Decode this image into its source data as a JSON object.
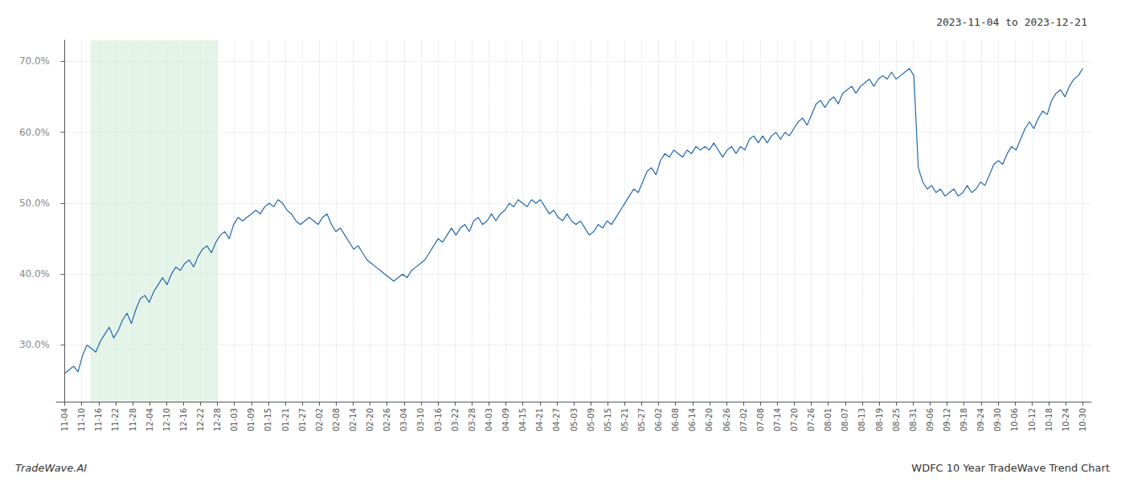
{
  "chart_data": {
    "type": "line",
    "title": "WDFC 10 Year TradeWave Trend Chart",
    "subtitle": "2023-11-04 to 2023-12-21",
    "annotations": [
      "TradeWave.AI"
    ],
    "color": "#2266aa",
    "grid": true,
    "highlight": {
      "start": 1.5,
      "end": 9.0,
      "color": "#d4edda"
    },
    "xlim": [
      -0.5,
      60.5
    ],
    "xticks": [
      {
        "value": 0,
        "label": "11-04"
      },
      {
        "value": 1,
        "label": "11-10"
      },
      {
        "value": 2,
        "label": "11-16"
      },
      {
        "value": 3,
        "label": "11-22"
      },
      {
        "value": 4,
        "label": "11-28"
      },
      {
        "value": 5,
        "label": "12-04"
      },
      {
        "value": 6,
        "label": "12-10"
      },
      {
        "value": 7,
        "label": "12-16"
      },
      {
        "value": 8,
        "label": "12-22"
      },
      {
        "value": 9,
        "label": "12-28"
      },
      {
        "value": 10,
        "label": "01-03"
      },
      {
        "value": 11,
        "label": "01-09"
      },
      {
        "value": 12,
        "label": "01-15"
      },
      {
        "value": 13,
        "label": "01-21"
      },
      {
        "value": 14,
        "label": "01-27"
      },
      {
        "value": 15,
        "label": "02-02"
      },
      {
        "value": 16,
        "label": "02-08"
      },
      {
        "value": 17,
        "label": "02-14"
      },
      {
        "value": 18,
        "label": "02-20"
      },
      {
        "value": 19,
        "label": "02-26"
      },
      {
        "value": 20,
        "label": "03-04"
      },
      {
        "value": 21,
        "label": "03-10"
      },
      {
        "value": 22,
        "label": "03-16"
      },
      {
        "value": 23,
        "label": "03-22"
      },
      {
        "value": 24,
        "label": "03-28"
      },
      {
        "value": 25,
        "label": "04-03"
      },
      {
        "value": 26,
        "label": "04-09"
      },
      {
        "value": 27,
        "label": "04-15"
      },
      {
        "value": 28,
        "label": "04-21"
      },
      {
        "value": 29,
        "label": "04-27"
      },
      {
        "value": 30,
        "label": "05-03"
      },
      {
        "value": 31,
        "label": "05-09"
      },
      {
        "value": 32,
        "label": "05-15"
      },
      {
        "value": 33,
        "label": "05-21"
      },
      {
        "value": 34,
        "label": "05-27"
      },
      {
        "value": 35,
        "label": "06-02"
      },
      {
        "value": 36,
        "label": "06-08"
      },
      {
        "value": 37,
        "label": "06-14"
      },
      {
        "value": 38,
        "label": "06-20"
      },
      {
        "value": 39,
        "label": "06-26"
      },
      {
        "value": 40,
        "label": "07-02"
      },
      {
        "value": 41,
        "label": "07-08"
      },
      {
        "value": 42,
        "label": "07-14"
      },
      {
        "value": 43,
        "label": "07-20"
      },
      {
        "value": 44,
        "label": "07-26"
      },
      {
        "value": 45,
        "label": "08-01"
      },
      {
        "value": 46,
        "label": "08-07"
      },
      {
        "value": 47,
        "label": "08-13"
      },
      {
        "value": 48,
        "label": "08-19"
      },
      {
        "value": 49,
        "label": "08-25"
      },
      {
        "value": 50,
        "label": "08-31"
      },
      {
        "value": 51,
        "label": "09-06"
      },
      {
        "value": 52,
        "label": "09-12"
      },
      {
        "value": 53,
        "label": "09-18"
      },
      {
        "value": 54,
        "label": "09-24"
      },
      {
        "value": 55,
        "label": "09-30"
      },
      {
        "value": 56,
        "label": "10-06"
      },
      {
        "value": 57,
        "label": "10-12"
      },
      {
        "value": 58,
        "label": "10-18"
      },
      {
        "value": 59,
        "label": "10-24"
      },
      {
        "value": 60,
        "label": "10-30"
      }
    ],
    "ylim": [
      22,
      73
    ],
    "yticks": [
      {
        "value": 30,
        "label": "30.0%"
      },
      {
        "value": 40,
        "label": "40.0%"
      },
      {
        "value": 50,
        "label": "50.0%"
      },
      {
        "value": 60,
        "label": "60.0%"
      },
      {
        "value": 70,
        "label": "70.0%"
      }
    ],
    "x": [
      0,
      0.262,
      0.524,
      0.786,
      1.048,
      1.31,
      1.5721,
      1.8341,
      2.0961,
      2.3581,
      2.6201,
      2.8821,
      3.1441,
      3.4061,
      3.6681,
      3.9301,
      4.1921,
      4.4541,
      4.7162,
      4.9782,
      5.2402,
      5.5022,
      5.7642,
      6.0262,
      6.2882,
      6.5502,
      6.8122,
      7.0742,
      7.3362,
      7.5983,
      7.8603,
      8.1223,
      8.3843,
      8.6463,
      8.9083,
      9.1703,
      9.4323,
      9.6943,
      9.9563,
      10.2183,
      10.4803,
      10.7424,
      11.0044,
      11.2664,
      11.5284,
      11.7904,
      12.0524,
      12.3144,
      12.5764,
      12.8384,
      13.1004,
      13.3624,
      13.6245,
      13.8865,
      14.1485,
      14.4105,
      14.6725,
      14.9345,
      15.1965,
      15.4585,
      15.7205,
      15.9825,
      16.2445,
      16.5066,
      16.7686,
      17.0306,
      17.2926,
      17.5546,
      17.8166,
      18.0786,
      18.3406,
      18.6026,
      18.8646,
      19.1266,
      19.3886,
      19.6507,
      19.9127,
      20.1747,
      20.4367,
      20.6987,
      20.9607,
      21.2227,
      21.4847,
      21.7467,
      22.0087,
      22.2707,
      22.5328,
      22.7948,
      23.0568,
      23.3188,
      23.5808,
      23.8428,
      24.1048,
      24.3668,
      24.6288,
      24.8908,
      25.1528,
      25.4148,
      25.6769,
      25.9389,
      26.2009,
      26.4629,
      26.7249,
      26.9869,
      27.2489,
      27.5109,
      27.7729,
      28.0349,
      28.2969,
      28.559,
      28.821,
      29.083,
      29.345,
      29.607,
      29.869,
      30.131,
      30.393,
      30.655,
      30.917,
      31.179,
      31.441,
      31.7031,
      31.9651,
      32.2271,
      32.4891,
      32.7511,
      33.0131,
      33.2751,
      33.5371,
      33.7991,
      34.0611,
      34.3231,
      34.5852,
      34.8472,
      35.1092,
      35.3712,
      35.6332,
      35.8952,
      36.1572,
      36.4192,
      36.6812,
      36.9432,
      37.2052,
      37.4672,
      37.7293,
      37.9913,
      38.2533,
      38.5153,
      38.7773,
      39.0393,
      39.3013,
      39.5633,
      39.8253,
      40.0873,
      40.3493,
      40.6114,
      40.8734,
      41.1354,
      41.3974,
      41.6594,
      41.9214,
      42.1834,
      42.4454,
      42.7074,
      42.9694,
      43.2314,
      43.4934,
      43.7555,
      44.0175,
      44.2795,
      44.5415,
      44.8035,
      45.0655,
      45.3275,
      45.5895,
      45.8515,
      46.1135,
      46.3755,
      46.6376,
      46.8996,
      47.1616,
      47.4236,
      47.6856,
      47.9476,
      48.2096,
      48.4716,
      48.7336,
      48.9956,
      49.2576,
      49.5197,
      49.7817,
      50.0437,
      50.3057,
      50.5677,
      50.8297,
      51.0917,
      51.3537,
      51.6157,
      51.8777,
      52.1397,
      52.4017,
      52.6638,
      52.9258,
      53.1878,
      53.4498,
      53.7118,
      53.9738,
      54.2358,
      54.4978,
      54.7598,
      55.0218,
      55.2838,
      55.5459,
      55.8079,
      56.0699,
      56.3319,
      56.5939,
      56.8559,
      57.1179,
      57.3799,
      57.6419,
      57.9039,
      58.1659,
      58.4279,
      58.69,
      58.952,
      59.214,
      59.476,
      59.738,
      60
    ],
    "values": [
      26.0,
      26.5,
      27.0,
      26.2,
      28.5,
      30.0,
      29.5,
      29.0,
      30.5,
      31.5,
      32.5,
      31.0,
      32.0,
      33.5,
      34.5,
      33.0,
      35.0,
      36.5,
      37.0,
      36.0,
      37.5,
      38.5,
      39.5,
      38.5,
      40.0,
      41.0,
      40.5,
      41.5,
      42.0,
      41.0,
      42.5,
      43.5,
      44.0,
      43.0,
      44.5,
      45.5,
      46.0,
      45.0,
      47.0,
      48.0,
      47.5,
      48.0,
      48.5,
      49.0,
      48.5,
      49.5,
      50.0,
      49.5,
      50.5,
      50.0,
      49.0,
      48.5,
      47.5,
      47.0,
      47.5,
      48.0,
      47.5,
      47.0,
      48.0,
      48.5,
      47.0,
      46.0,
      46.5,
      45.5,
      44.5,
      43.5,
      44.0,
      43.0,
      42.0,
      41.5,
      41.0,
      40.5,
      40.0,
      39.5,
      39.0,
      39.5,
      40.0,
      39.5,
      40.5,
      41.0,
      41.5,
      42.0,
      43.0,
      44.0,
      45.0,
      44.5,
      45.5,
      46.5,
      45.5,
      46.5,
      47.0,
      46.0,
      47.5,
      48.0,
      47.0,
      47.5,
      48.5,
      47.5,
      48.5,
      49.0,
      50.0,
      49.5,
      50.5,
      50.0,
      49.5,
      50.5,
      50.0,
      50.5,
      49.5,
      48.5,
      49.0,
      48.0,
      47.5,
      48.5,
      47.5,
      47.0,
      47.5,
      46.5,
      45.5,
      46.0,
      47.0,
      46.5,
      47.5,
      47.0,
      48.0,
      49.0,
      50.0,
      51.0,
      52.0,
      51.5,
      53.0,
      54.5,
      55.0,
      54.0,
      56.0,
      57.0,
      56.5,
      57.5,
      57.0,
      56.5,
      57.5,
      57.0,
      58.0,
      57.5,
      58.0,
      57.5,
      58.5,
      57.5,
      56.5,
      57.5,
      58.0,
      57.0,
      58.0,
      57.5,
      59.0,
      59.5,
      58.5,
      59.5,
      58.5,
      59.5,
      60.0,
      59.0,
      60.0,
      59.5,
      60.5,
      61.5,
      62.0,
      61.0,
      62.5,
      64.0,
      64.5,
      63.5,
      64.5,
      65.0,
      64.0,
      65.5,
      66.0,
      66.5,
      65.5,
      66.5,
      67.0,
      67.5,
      66.5,
      67.5,
      68.0,
      67.5,
      68.5,
      67.5,
      68.0,
      68.5,
      69.0,
      68.0,
      55.0,
      53.0,
      52.0,
      52.5,
      51.5,
      52.0,
      51.0,
      51.5,
      52.0,
      51.0,
      51.5,
      52.5,
      51.5,
      52.0,
      53.0,
      52.5,
      54.0,
      55.5,
      56.0,
      55.5,
      57.0,
      58.0,
      57.5,
      59.0,
      60.5,
      61.5,
      60.5,
      62.0,
      63.0,
      62.5,
      64.5,
      65.5,
      66.0,
      65.0,
      66.5,
      67.5,
      68.0,
      69.0
    ]
  }
}
